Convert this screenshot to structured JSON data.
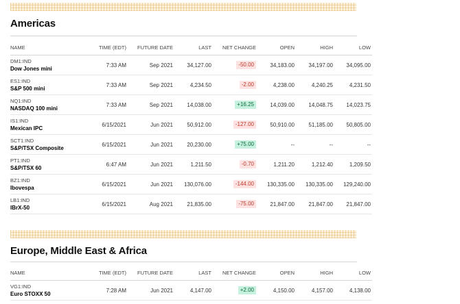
{
  "columns": [
    "NAME",
    "TIME (EDT)",
    "FUTURE DATE",
    "LAST",
    "NET CHANGE",
    "OPEN",
    "HIGH",
    "LOW"
  ],
  "americas": {
    "title": "Americas",
    "rows": [
      {
        "ticker": "DM1:IND",
        "name": "Dow Jones mini",
        "time": "7:33 AM",
        "future": "Sep 2021",
        "last": "34,127.00",
        "change": "-50.00",
        "dir": "neg",
        "open": "34,183.00",
        "high": "34,197.00",
        "low": "34,095.00"
      },
      {
        "ticker": "ES1:IND",
        "name": "S&P 500 mini",
        "time": "7:33 AM",
        "future": "Sep 2021",
        "last": "4,234.50",
        "change": "-2.00",
        "dir": "neg",
        "open": "4,238.00",
        "high": "4,240.25",
        "low": "4,231.50"
      },
      {
        "ticker": "NQ1:IND",
        "name": "NASDAQ 100 mini",
        "time": "7:33 AM",
        "future": "Sep 2021",
        "last": "14,038.00",
        "change": "+16.25",
        "dir": "pos",
        "open": "14,039.00",
        "high": "14,048.75",
        "low": "14,023.75"
      },
      {
        "ticker": "IS1:IND",
        "name": "Mexican IPC",
        "time": "6/15/2021",
        "future": "Jun 2021",
        "last": "50,912.00",
        "change": "-127.00",
        "dir": "neg",
        "open": "50,910.00",
        "high": "51,185.00",
        "low": "50,805.00"
      },
      {
        "ticker": "SCT1:IND",
        "name": "S&P/TSX Composite",
        "time": "6/15/2021",
        "future": "Jun 2021",
        "last": "20,230.00",
        "change": "+75.00",
        "dir": "pos",
        "open": "--",
        "high": "--",
        "low": "--"
      },
      {
        "ticker": "PT1:IND",
        "name": "S&P/TSX 60",
        "time": "6:47 AM",
        "future": "Jun 2021",
        "last": "1,211.50",
        "change": "-0.70",
        "dir": "neg",
        "open": "1,211.20",
        "high": "1,212.40",
        "low": "1,209.50"
      },
      {
        "ticker": "BZ1:IND",
        "name": "Ibovespa",
        "time": "6/15/2021",
        "future": "Jun 2021",
        "last": "130,076.00",
        "change": "-144.00",
        "dir": "neg",
        "open": "130,335.00",
        "high": "130,335.00",
        "low": "129,240.00"
      },
      {
        "ticker": "LB1:IND",
        "name": "IBrX-50",
        "time": "6/15/2021",
        "future": "Aug 2021",
        "last": "21,835.00",
        "change": "-75.00",
        "dir": "neg",
        "open": "21,847.00",
        "high": "21,847.00",
        "low": "21,847.00"
      }
    ]
  },
  "emea": {
    "title": "Europe, Middle East & Africa",
    "rows": [
      {
        "ticker": "VG1:IND",
        "name": "Euro STOXX 50",
        "time": "7:28 AM",
        "future": "Jun 2021",
        "last": "4,147.00",
        "change": "+2.00",
        "dir": "pos",
        "open": "4,150.00",
        "high": "4,157.00",
        "low": "4,138.00"
      }
    ]
  },
  "colors": {
    "negative_bg": "#fde2e1",
    "negative_text": "#c0392b",
    "positive_bg": "#c7f1df",
    "positive_text": "#0b6b3a",
    "stripe": "#fcf2dc"
  }
}
